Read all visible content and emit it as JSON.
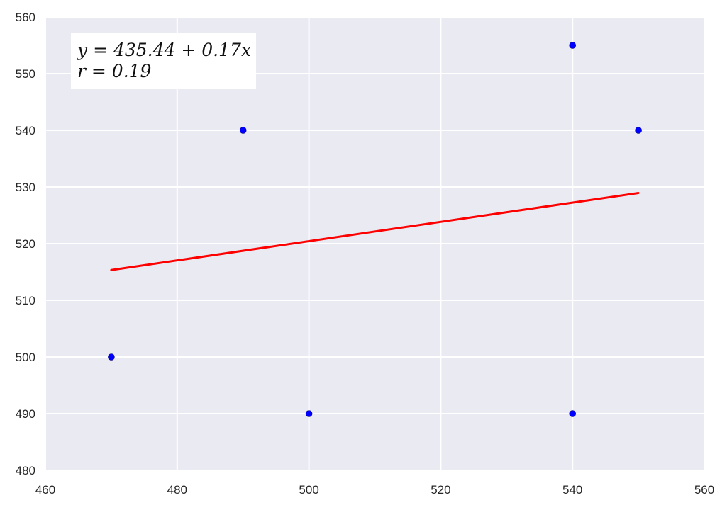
{
  "chart_data": {
    "type": "scatter",
    "title": "",
    "xlabel": "",
    "ylabel": "",
    "xlim": [
      460,
      560
    ],
    "ylim": [
      480,
      560
    ],
    "x_ticks": [
      460,
      480,
      500,
      520,
      540,
      560
    ],
    "y_ticks": [
      480,
      490,
      500,
      510,
      520,
      530,
      540,
      550,
      560
    ],
    "grid": true,
    "background": "#eaeaf2",
    "grid_color": "#ffffff",
    "series": [
      {
        "type": "scatter",
        "color": "#0000ff",
        "points": [
          {
            "x": 470,
            "y": 500
          },
          {
            "x": 490,
            "y": 540
          },
          {
            "x": 500,
            "y": 490
          },
          {
            "x": 540,
            "y": 555
          },
          {
            "x": 540,
            "y": 490
          },
          {
            "x": 550,
            "y": 540
          }
        ]
      },
      {
        "type": "line",
        "color": "#ff0000",
        "intercept": 435.44,
        "slope": 0.17,
        "x_range": [
          470,
          550
        ]
      }
    ],
    "annotation": {
      "line1": "y = 435.44 + 0.17x",
      "line2": "r = 0.19",
      "placement": "top-left"
    }
  }
}
